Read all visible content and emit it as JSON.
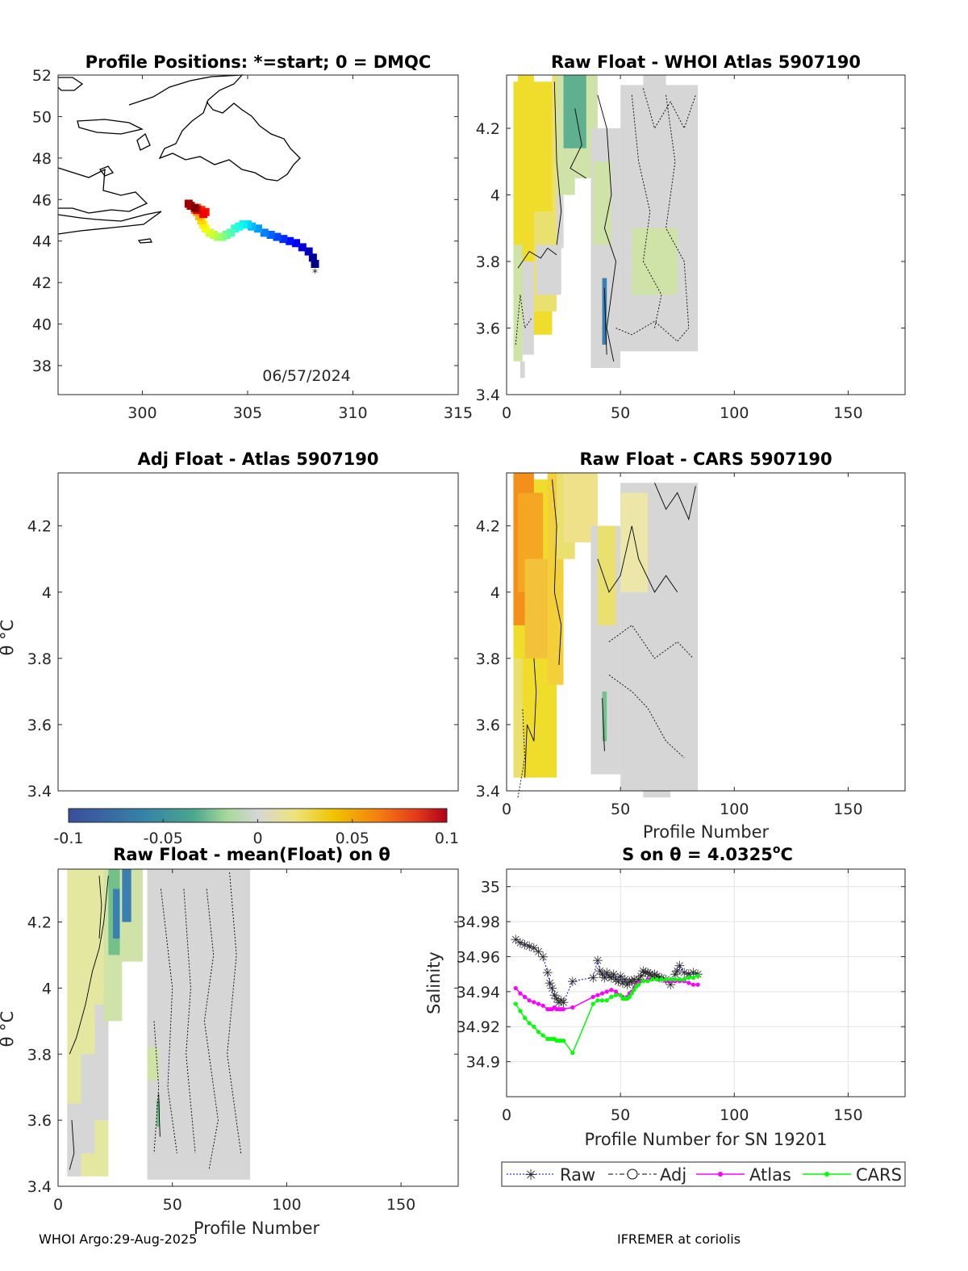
{
  "page": {
    "footer_left": "WHOI Argo:29-Aug-2025",
    "footer_right": "IFREMER at coriolis"
  },
  "chart_data": [
    {
      "id": "positions",
      "type": "scatter",
      "title": "Profile Positions: *=start; 0 = DMQC",
      "xlim": [
        296,
        315
      ],
      "ylim": [
        36.6,
        52
      ],
      "xticks": [
        "300",
        "305",
        "310",
        "315"
      ],
      "yticks": [
        "38",
        "40",
        "42",
        "44",
        "46",
        "48",
        "50",
        "52"
      ],
      "annotation": "06/57/2024",
      "track_lon": [
        308.2,
        308.1,
        307.9,
        307.6,
        307.3,
        307.0,
        306.7,
        306.4,
        306.1,
        305.8,
        305.5,
        305.2,
        305.0,
        304.8,
        304.6,
        304.4,
        304.2,
        304.0,
        303.8,
        303.6,
        303.4,
        303.2,
        303.0,
        302.9,
        302.8,
        302.7,
        302.6,
        302.5,
        302.5,
        302.6,
        302.8,
        303.0,
        302.9,
        302.6,
        302.3,
        302.2,
        302.5
      ],
      "track_lat": [
        42.9,
        43.2,
        43.5,
        43.7,
        43.9,
        44.0,
        44.1,
        44.2,
        44.3,
        44.4,
        44.6,
        44.7,
        44.8,
        44.8,
        44.7,
        44.6,
        44.4,
        44.3,
        44.2,
        44.2,
        44.3,
        44.4,
        44.6,
        44.8,
        45.0,
        45.2,
        45.4,
        45.5,
        45.6,
        45.6,
        45.5,
        45.4,
        45.3,
        45.5,
        45.7,
        45.8,
        45.6
      ]
    },
    {
      "id": "raw-whoi",
      "type": "heatmap",
      "title": "Raw Float - WHOI Atlas  5907190",
      "xlim": [
        0,
        175
      ],
      "ylim": [
        3.4,
        4.36
      ],
      "xticks": [
        "0",
        "50",
        "100",
        "150"
      ],
      "yticks": [
        "3.4",
        "3.6",
        "3.8",
        "4",
        "4.2"
      ],
      "profiles": [
        1,
        84
      ],
      "bias_levels": [
        "yellow",
        "light-green",
        "grey"
      ]
    },
    {
      "id": "adj-atlas",
      "type": "heatmap",
      "title": "Adj Float - Atlas  5907190",
      "xlim": [
        0,
        175
      ],
      "ylim": [
        3.4,
        4.36
      ],
      "yticks": [
        "3.4",
        "3.6",
        "3.8",
        "4",
        "4.2"
      ],
      "ylabel": "θ °C",
      "colorbar": {
        "min": -0.1,
        "max": 0.1,
        "ticks": [
          "-0.1",
          "-0.05",
          "0",
          "0.05",
          "0.1"
        ]
      }
    },
    {
      "id": "raw-cars",
      "type": "heatmap",
      "title": "Raw Float - CARS  5907190",
      "xlim": [
        0,
        175
      ],
      "ylim": [
        3.4,
        4.36
      ],
      "xticks": [
        "0",
        "50",
        "100",
        "150"
      ],
      "yticks": [
        "3.4",
        "3.6",
        "3.8",
        "4",
        "4.2"
      ],
      "xlabel": "Profile Number",
      "profiles": [
        1,
        84
      ]
    },
    {
      "id": "raw-mean",
      "type": "heatmap",
      "title": "Raw Float - mean(Float) on θ",
      "xlim": [
        0,
        175
      ],
      "ylim": [
        3.4,
        4.36
      ],
      "xticks": [
        "0",
        "50",
        "100",
        "150"
      ],
      "yticks": [
        "3.4",
        "3.6",
        "3.8",
        "4",
        "4.2"
      ],
      "xlabel": "Profile Number",
      "ylabel": "θ °C",
      "profiles": [
        1,
        84
      ]
    },
    {
      "id": "salinity",
      "type": "line",
      "title_prefix": "S on θ = 4.0325",
      "title_sup": "o",
      "title_suffix": "C",
      "xlabel": "Profile Number for SN 19201",
      "ylabel": "Salinity",
      "xlim": [
        0,
        175
      ],
      "ylim": [
        34.88,
        35.01
      ],
      "xticks": [
        "0",
        "50",
        "100",
        "150"
      ],
      "yticks": [
        "34.9",
        "34.92",
        "34.94",
        "34.96",
        "34.98",
        "35"
      ],
      "series": [
        {
          "name": "Raw",
          "color": "#0000ff",
          "x": [
            4,
            6,
            8,
            10,
            12,
            14,
            16,
            18,
            19,
            20,
            21,
            22,
            23,
            24,
            25,
            29,
            38,
            40,
            41,
            42,
            43,
            44,
            45,
            46,
            47,
            48,
            49,
            50,
            51,
            52,
            53,
            54,
            55,
            56,
            57,
            58,
            59,
            60,
            61,
            62,
            63,
            64,
            65,
            66,
            67,
            68,
            70,
            72,
            74,
            75,
            76,
            78,
            80,
            82,
            84
          ],
          "y": [
            34.97,
            34.968,
            34.967,
            34.966,
            34.965,
            34.963,
            34.96,
            34.951,
            34.945,
            34.942,
            34.938,
            34.936,
            34.934,
            34.935,
            34.934,
            34.946,
            34.948,
            34.958,
            34.952,
            34.95,
            34.948,
            34.951,
            34.949,
            34.948,
            34.95,
            34.947,
            34.946,
            34.949,
            34.945,
            34.947,
            34.944,
            34.946,
            34.946,
            34.947,
            34.945,
            34.947,
            34.949,
            34.952,
            34.951,
            34.951,
            34.95,
            34.949,
            34.95,
            34.949,
            34.948,
            34.948,
            34.947,
            34.944,
            34.95,
            34.952,
            34.955,
            34.951,
            34.95,
            34.951,
            34.95
          ]
        },
        {
          "name": "Adj",
          "color": "#000000",
          "x": [],
          "y": []
        },
        {
          "name": "Atlas",
          "color": "#ff00ff",
          "x": [
            4,
            6,
            8,
            10,
            12,
            14,
            16,
            18,
            19,
            20,
            21,
            22,
            23,
            24,
            25,
            29,
            38,
            40,
            42,
            44,
            46,
            48,
            50,
            51,
            52,
            53,
            54,
            55,
            56,
            57,
            58,
            60,
            62,
            64,
            66,
            68,
            70,
            72,
            74,
            76,
            78,
            80,
            82,
            84
          ],
          "y": [
            34.942,
            34.939,
            34.937,
            34.935,
            34.934,
            34.933,
            34.932,
            34.93,
            34.93,
            34.93,
            34.931,
            34.93,
            34.93,
            34.93,
            34.93,
            34.931,
            34.937,
            34.938,
            34.939,
            34.94,
            34.941,
            34.94,
            34.938,
            34.937,
            34.936,
            34.937,
            34.939,
            34.94,
            34.942,
            34.944,
            34.945,
            34.946,
            34.947,
            34.947,
            34.947,
            34.947,
            34.946,
            34.946,
            34.946,
            34.946,
            34.946,
            34.945,
            34.944,
            34.944
          ]
        },
        {
          "name": "CARS",
          "color": "#00ff00",
          "x": [
            4,
            6,
            8,
            10,
            12,
            14,
            16,
            18,
            19,
            20,
            21,
            22,
            23,
            24,
            25,
            29,
            38,
            40,
            42,
            44,
            46,
            48,
            50,
            51,
            52,
            53,
            54,
            55,
            56,
            57,
            58,
            60,
            62,
            64,
            66,
            68,
            70,
            72,
            74,
            76,
            78,
            80,
            82,
            84
          ],
          "y": [
            34.933,
            34.929,
            34.925,
            34.922,
            34.92,
            34.917,
            34.915,
            34.913,
            34.913,
            34.913,
            34.913,
            34.912,
            34.912,
            34.912,
            34.912,
            34.905,
            34.933,
            34.935,
            34.935,
            34.935,
            34.937,
            34.938,
            34.938,
            34.936,
            34.936,
            34.936,
            34.937,
            34.939,
            34.941,
            34.943,
            34.944,
            34.946,
            34.946,
            34.947,
            34.947,
            34.947,
            34.947,
            34.947,
            34.947,
            34.947,
            34.947,
            34.948,
            34.948,
            34.949
          ]
        }
      ]
    }
  ]
}
